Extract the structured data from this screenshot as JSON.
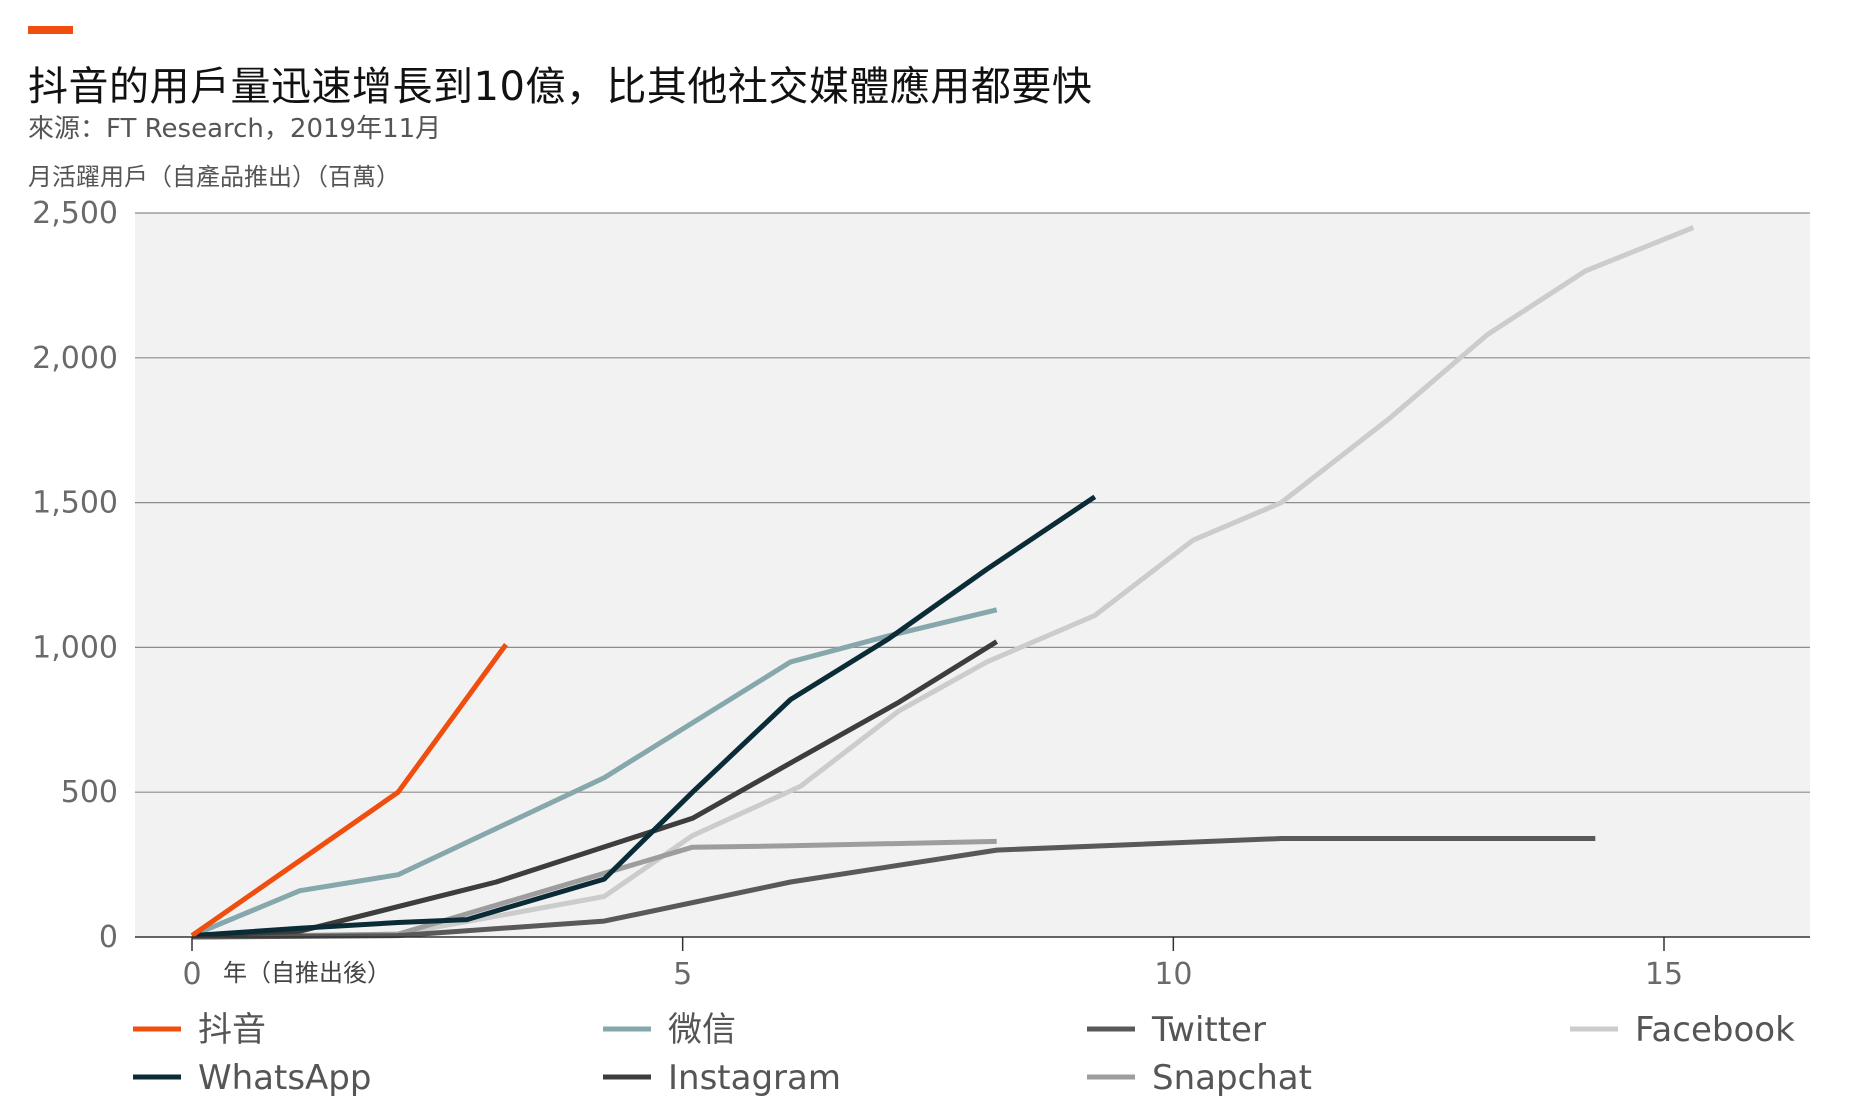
{
  "header": {
    "title": "抖音的用戶量迅速增長到10億，比其他社交媒體應用都要快",
    "subtitle": "來源：FT Research，2019年11月",
    "accent_color": "#f04e0f"
  },
  "chart_data": {
    "type": "line",
    "title": "抖音的用戶量迅速增長到10億，比其他社交媒體應用都要快",
    "subtitle": "來源：FT Research，2019年11月",
    "ylabel": "月活躍用戶（自產品推出）（百萬）",
    "xlabel": "年（自推出後）",
    "xlim": [
      -0.5,
      16.5
    ],
    "ylim": [
      0,
      2500
    ],
    "x_ticks": [
      0,
      5,
      10,
      15
    ],
    "y_ticks": [
      0,
      500,
      1000,
      1500,
      2000,
      2500
    ],
    "y_tick_labels": [
      "0",
      "500",
      "1,000",
      "1,500",
      "2,000",
      "2,500"
    ],
    "grid": true,
    "background": "#f2f2f2",
    "legend_position": "bottom",
    "series": [
      {
        "name": "抖音",
        "color": "#f04e0f",
        "x": [
          0,
          2.1,
          3.2
        ],
        "y": [
          5,
          500,
          1010
        ]
      },
      {
        "name": "微信",
        "color": "#86a7ab",
        "x": [
          0,
          1.1,
          2.1,
          4.2,
          6.1,
          7.1,
          8.2
        ],
        "y": [
          5,
          160,
          215,
          550,
          950,
          1040,
          1130
        ]
      },
      {
        "name": "Twitter",
        "color": "#595959",
        "x": [
          0,
          2.1,
          4.2,
          6.1,
          8.2,
          11.1,
          14.3
        ],
        "y": [
          0,
          5,
          55,
          190,
          300,
          340,
          340
        ]
      },
      {
        "name": "Facebook",
        "color": "#cccccc",
        "x": [
          0,
          2.1,
          4.2,
          5.1,
          6.2,
          7.2,
          8.1,
          9.2,
          10.2,
          11.1,
          12.2,
          13.2,
          14.2,
          15.3
        ],
        "y": [
          0,
          10,
          140,
          350,
          520,
          780,
          950,
          1110,
          1370,
          1500,
          1790,
          2080,
          2300,
          2450
        ]
      },
      {
        "name": "WhatsApp",
        "color": "#0b2b37",
        "x": [
          0,
          1.1,
          2.1,
          2.8,
          4.2,
          5.1,
          6.1,
          7.1,
          8.1,
          9.2
        ],
        "y": [
          5,
          30,
          50,
          60,
          200,
          500,
          820,
          1030,
          1270,
          1520
        ]
      },
      {
        "name": "Instagram",
        "color": "#3d3d3d",
        "x": [
          0,
          1.1,
          3.1,
          5.1,
          6.2,
          7.2,
          8.2
        ],
        "y": [
          5,
          20,
          190,
          410,
          620,
          810,
          1020
        ]
      },
      {
        "name": "Snapchat",
        "color": "#9d9d9d",
        "x": [
          0,
          2.1,
          4.2,
          5.1,
          6.1,
          8.2
        ],
        "y": [
          0,
          10,
          220,
          310,
          315,
          330
        ]
      }
    ]
  }
}
